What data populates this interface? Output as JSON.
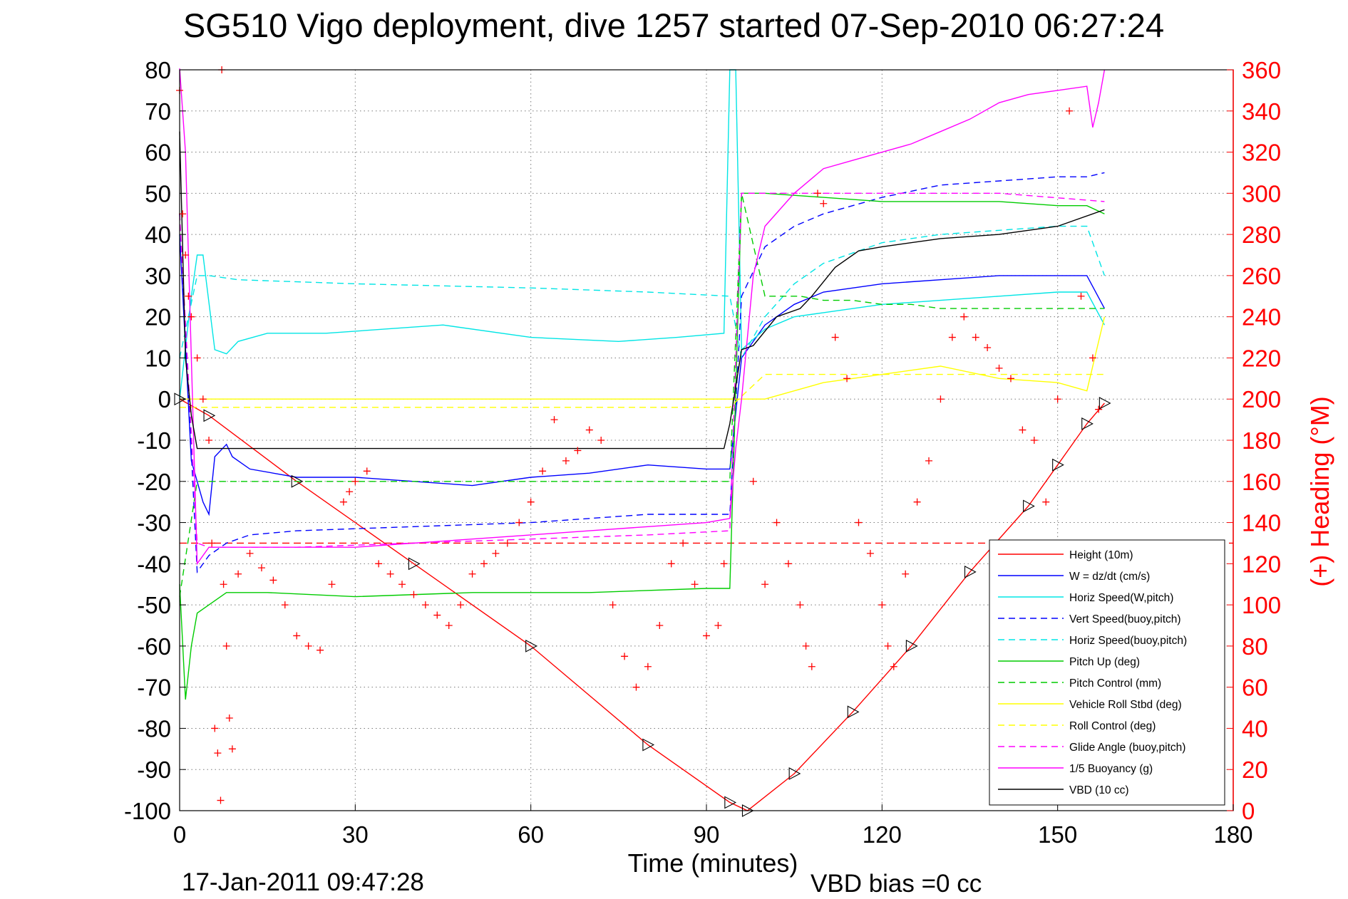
{
  "chart_data": {
    "type": "line",
    "title": "SG510 Vigo deployment, dive 1257 started 07-Sep-2010 06:27:24",
    "xlabel": "Time (minutes)",
    "ylabel": "",
    "y2label": "(+) Heading (°M)",
    "xlim": [
      0,
      180
    ],
    "ylim": [
      -100,
      80
    ],
    "y2lim": [
      0,
      360
    ],
    "xticks": [
      "0",
      "30",
      "60",
      "90",
      "120",
      "150",
      "180"
    ],
    "yticks": [
      "80",
      "70",
      "60",
      "50",
      "40",
      "30",
      "20",
      "10",
      "0",
      "-10",
      "-20",
      "-30",
      "-40",
      "-50",
      "-60",
      "-70",
      "-80",
      "-90",
      "-100"
    ],
    "y2ticks": [
      "360",
      "340",
      "320",
      "300",
      "280",
      "260",
      "240",
      "220",
      "200",
      "180",
      "160",
      "140",
      "120",
      "100",
      "80",
      "60",
      "40",
      "20",
      "0"
    ],
    "grid": true,
    "legend_position": "bottom-right",
    "footer_left": "17-Jan-2011 09:47:28",
    "footer_right": "VBD bias =0 cc",
    "series": [
      {
        "name": "Height (10m)",
        "color": "#ff0000",
        "style": "solid",
        "x": [
          0,
          5,
          20,
          40,
          60,
          80,
          94,
          97,
          105,
          115,
          125,
          135,
          145,
          150,
          155,
          158
        ],
        "y": [
          0,
          -4,
          -20,
          -40,
          -60,
          -84,
          -98,
          -100,
          -91,
          -76,
          -60,
          -42,
          -26,
          -16,
          -6,
          -1
        ]
      },
      {
        "name": "W = dz/dt (cm/s)",
        "color": "#0000ff",
        "style": "solid",
        "x": [
          0,
          2,
          4,
          5,
          6,
          8,
          9,
          12,
          20,
          30,
          40,
          50,
          60,
          70,
          80,
          90,
          94,
          96,
          100,
          105,
          110,
          120,
          130,
          140,
          150,
          155,
          158
        ],
        "y": [
          40,
          -15,
          -25,
          -28,
          -14,
          -11,
          -14,
          -17,
          -19,
          -19,
          -20,
          -21,
          -19,
          -18,
          -16,
          -17,
          -17,
          10,
          18,
          23,
          26,
          28,
          29,
          30,
          30,
          30,
          22
        ]
      },
      {
        "name": "Horiz Speed(W,pitch)",
        "color": "#00e5e5",
        "style": "solid",
        "x": [
          0,
          2,
          3,
          4,
          6,
          8,
          10,
          15,
          25,
          45,
          60,
          75,
          85,
          93,
          94,
          95,
          96,
          100,
          105,
          110,
          120,
          130,
          140,
          150,
          155,
          158
        ],
        "y": [
          0,
          25,
          35,
          35,
          12,
          11,
          14,
          16,
          16,
          18,
          15,
          14,
          15,
          16,
          80,
          80,
          12,
          17,
          20,
          21,
          23,
          24,
          25,
          26,
          26,
          18
        ]
      },
      {
        "name": "Vert Speed(buoy,pitch)",
        "color": "#0000ff",
        "style": "dashed",
        "x": [
          0,
          3,
          5,
          8,
          12,
          20,
          40,
          60,
          80,
          94,
          96,
          100,
          105,
          110,
          120,
          130,
          140,
          150,
          155,
          158
        ],
        "y": [
          45,
          -42,
          -38,
          -35,
          -33,
          -32,
          -31,
          -30,
          -28,
          -28,
          25,
          37,
          42,
          45,
          49,
          52,
          53,
          54,
          54,
          55
        ]
      },
      {
        "name": "Horiz Speed(buoy,pitch)",
        "color": "#00e5e5",
        "style": "dashed",
        "x": [
          0,
          3,
          5,
          10,
          30,
          60,
          80,
          94,
          96,
          100,
          105,
          110,
          120,
          130,
          140,
          150,
          155,
          158
        ],
        "y": [
          10,
          30,
          30,
          29,
          28,
          27,
          26,
          25,
          10,
          20,
          28,
          33,
          38,
          40,
          41,
          42,
          42,
          30
        ]
      },
      {
        "name": "Pitch Up (deg)",
        "color": "#00cc00",
        "style": "solid",
        "x": [
          0,
          1,
          2,
          3,
          5,
          8,
          15,
          30,
          50,
          70,
          90,
          94,
          96,
          100,
          110,
          120,
          130,
          140,
          150,
          155,
          158
        ],
        "y": [
          -45,
          -73,
          -60,
          -52,
          -50,
          -47,
          -47,
          -48,
          -47,
          -47,
          -46,
          -46,
          50,
          50,
          49,
          48,
          48,
          48,
          47,
          47,
          45
        ]
      },
      {
        "name": "Pitch Control (mm)",
        "color": "#00cc00",
        "style": "dashed",
        "x": [
          0,
          3,
          5,
          20,
          40,
          60,
          80,
          94,
          96,
          100,
          106,
          110,
          115,
          120,
          125,
          130,
          140,
          150,
          158
        ],
        "y": [
          -48,
          -20,
          -20,
          -20,
          -20,
          -20,
          -20,
          -20,
          50,
          25,
          25,
          24,
          24,
          23,
          23,
          22,
          22,
          22,
          22
        ]
      },
      {
        "name": "Vehicle Roll Stbd (deg)",
        "color": "#ffff00",
        "style": "solid",
        "x": [
          0,
          5,
          10,
          20,
          30,
          40,
          50,
          60,
          70,
          80,
          90,
          94,
          96,
          100,
          110,
          120,
          130,
          140,
          150,
          155,
          158
        ],
        "y": [
          0,
          0,
          0,
          0,
          0,
          0,
          0,
          0,
          0,
          0,
          0,
          0,
          0,
          0,
          4,
          6,
          8,
          5,
          4,
          2,
          20
        ]
      },
      {
        "name": "Roll Control (deg)",
        "color": "#ffff00",
        "style": "dashed",
        "x": [
          0,
          10,
          30,
          60,
          90,
          94,
          100,
          130,
          158
        ],
        "y": [
          -2,
          -2,
          -2,
          -2,
          -2,
          -2,
          6,
          6,
          6
        ]
      },
      {
        "name": "Glide Angle (buoy,pitch)",
        "color": "#ff00ff",
        "style": "dashed",
        "x": [
          0,
          3,
          5,
          20,
          40,
          60,
          80,
          94,
          96,
          100,
          120,
          140,
          158
        ],
        "y": [
          45,
          -35,
          -36,
          -36,
          -35,
          -34,
          -33,
          -32,
          50,
          50,
          50,
          50,
          48
        ]
      },
      {
        "name": "1/5 Buoyancy (g)",
        "color": "#ff00ff",
        "style": "solid",
        "x": [
          0,
          1,
          2,
          3,
          5,
          10,
          20,
          30,
          40,
          50,
          60,
          70,
          80,
          90,
          94,
          95,
          96,
          98,
          100,
          105,
          110,
          115,
          120,
          125,
          130,
          135,
          140,
          145,
          150,
          155,
          156,
          157,
          158
        ],
        "y": [
          85,
          60,
          10,
          -40,
          -36,
          -36,
          -36,
          -36,
          -35,
          -34,
          -33,
          -32,
          -31,
          -30,
          -29,
          -12,
          0,
          30,
          42,
          50,
          56,
          58,
          60,
          62,
          65,
          68,
          72,
          74,
          75,
          76,
          66,
          72,
          80
        ]
      },
      {
        "name": "VBD (10 cc)",
        "color": "#000000",
        "style": "solid",
        "x": [
          0,
          1,
          2,
          3,
          93,
          94,
          96,
          98,
          102,
          106,
          108,
          112,
          116,
          120,
          130,
          140,
          150,
          158
        ],
        "y": [
          65,
          10,
          -4,
          -12,
          -12,
          -6,
          12,
          13,
          20,
          22,
          25,
          32,
          36,
          37,
          39,
          40,
          42,
          46
        ]
      }
    ],
    "heading": {
      "name": "Heading",
      "marker": "+",
      "color": "#ff0000",
      "axis": "right",
      "reference_line_y2": 130,
      "x": [
        0,
        0.5,
        1,
        1.5,
        2,
        3,
        4,
        5,
        5.5,
        6,
        6.5,
        7,
        7.2,
        7.5,
        8,
        8.5,
        9,
        10,
        12,
        14,
        16,
        18,
        20,
        22,
        24,
        26,
        28,
        29,
        30,
        32,
        34,
        36,
        38,
        40,
        42,
        44,
        46,
        48,
        50,
        52,
        54,
        56,
        58,
        60,
        62,
        64,
        66,
        68,
        70,
        72,
        74,
        76,
        78,
        80,
        82,
        84,
        86,
        88,
        90,
        92,
        93,
        98,
        100,
        102,
        104,
        106,
        107,
        108,
        109,
        110,
        112,
        114,
        116,
        118,
        120,
        121,
        122,
        124,
        126,
        128,
        130,
        132,
        134,
        136,
        138,
        140,
        142,
        144,
        146,
        148,
        150,
        152,
        154,
        156,
        157
      ],
      "y": [
        350,
        290,
        270,
        250,
        240,
        220,
        200,
        180,
        130,
        40,
        28,
        5,
        360,
        110,
        80,
        45,
        30,
        115,
        125,
        118,
        112,
        100,
        85,
        80,
        78,
        110,
        150,
        155,
        160,
        165,
        120,
        115,
        110,
        105,
        100,
        95,
        90,
        100,
        115,
        120,
        125,
        130,
        140,
        150,
        165,
        190,
        170,
        175,
        185,
        180,
        100,
        75,
        60,
        70,
        90,
        120,
        130,
        110,
        85,
        90,
        120,
        160,
        110,
        140,
        120,
        100,
        80,
        70,
        300,
        295,
        230,
        210,
        140,
        125,
        100,
        80,
        70,
        115,
        150,
        170,
        200,
        230,
        240,
        230,
        225,
        215,
        210,
        185,
        180,
        150,
        200,
        340,
        250,
        220,
        195
      ]
    }
  },
  "legend_entries": [
    "Height (10m)",
    "W = dz/dt (cm/s)",
    "Horiz Speed(W,pitch)",
    "Vert Speed(buoy,pitch)",
    "Horiz Speed(buoy,pitch)",
    "Pitch Up (deg)",
    "Pitch Control (mm)",
    "Vehicle Roll Stbd (deg)",
    "Roll Control (deg)",
    "Glide Angle (buoy,pitch)",
    "1/5 Buoyancy (g)",
    "VBD (10 cc)"
  ]
}
